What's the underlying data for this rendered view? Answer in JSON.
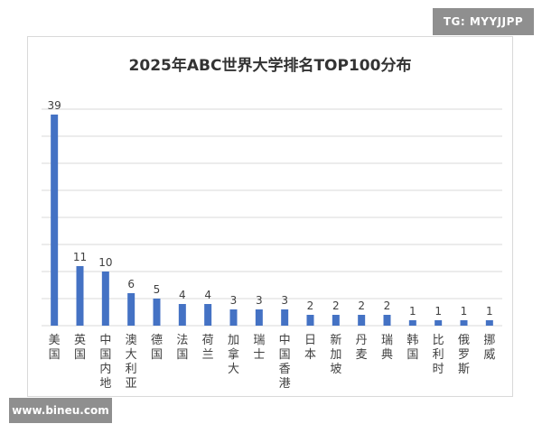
{
  "watermark_top": "TG: MYYJJPP",
  "watermark_bottom": "www.bineu.com",
  "colors": {
    "bar": "#4472c4",
    "grid": "#d9d9d9",
    "text": "#404040"
  },
  "chart_data": {
    "type": "bar",
    "title": "2025年ABC世界大学排名TOP100分布",
    "xlabel": "",
    "ylabel": "",
    "ylim": [
      0,
      40
    ],
    "grid": true,
    "categories": [
      "美国",
      "英国",
      "中国内地",
      "澳大利亚",
      "德国",
      "法国",
      "荷兰",
      "加拿大",
      "瑞士",
      "中国香港",
      "日本",
      "新加坡",
      "丹麦",
      "瑞典",
      "韩国",
      "比利时",
      "俄罗斯",
      "挪威"
    ],
    "values": [
      39,
      11,
      10,
      6,
      5,
      4,
      4,
      3,
      3,
      3,
      2,
      2,
      2,
      2,
      1,
      1,
      1,
      1
    ]
  }
}
